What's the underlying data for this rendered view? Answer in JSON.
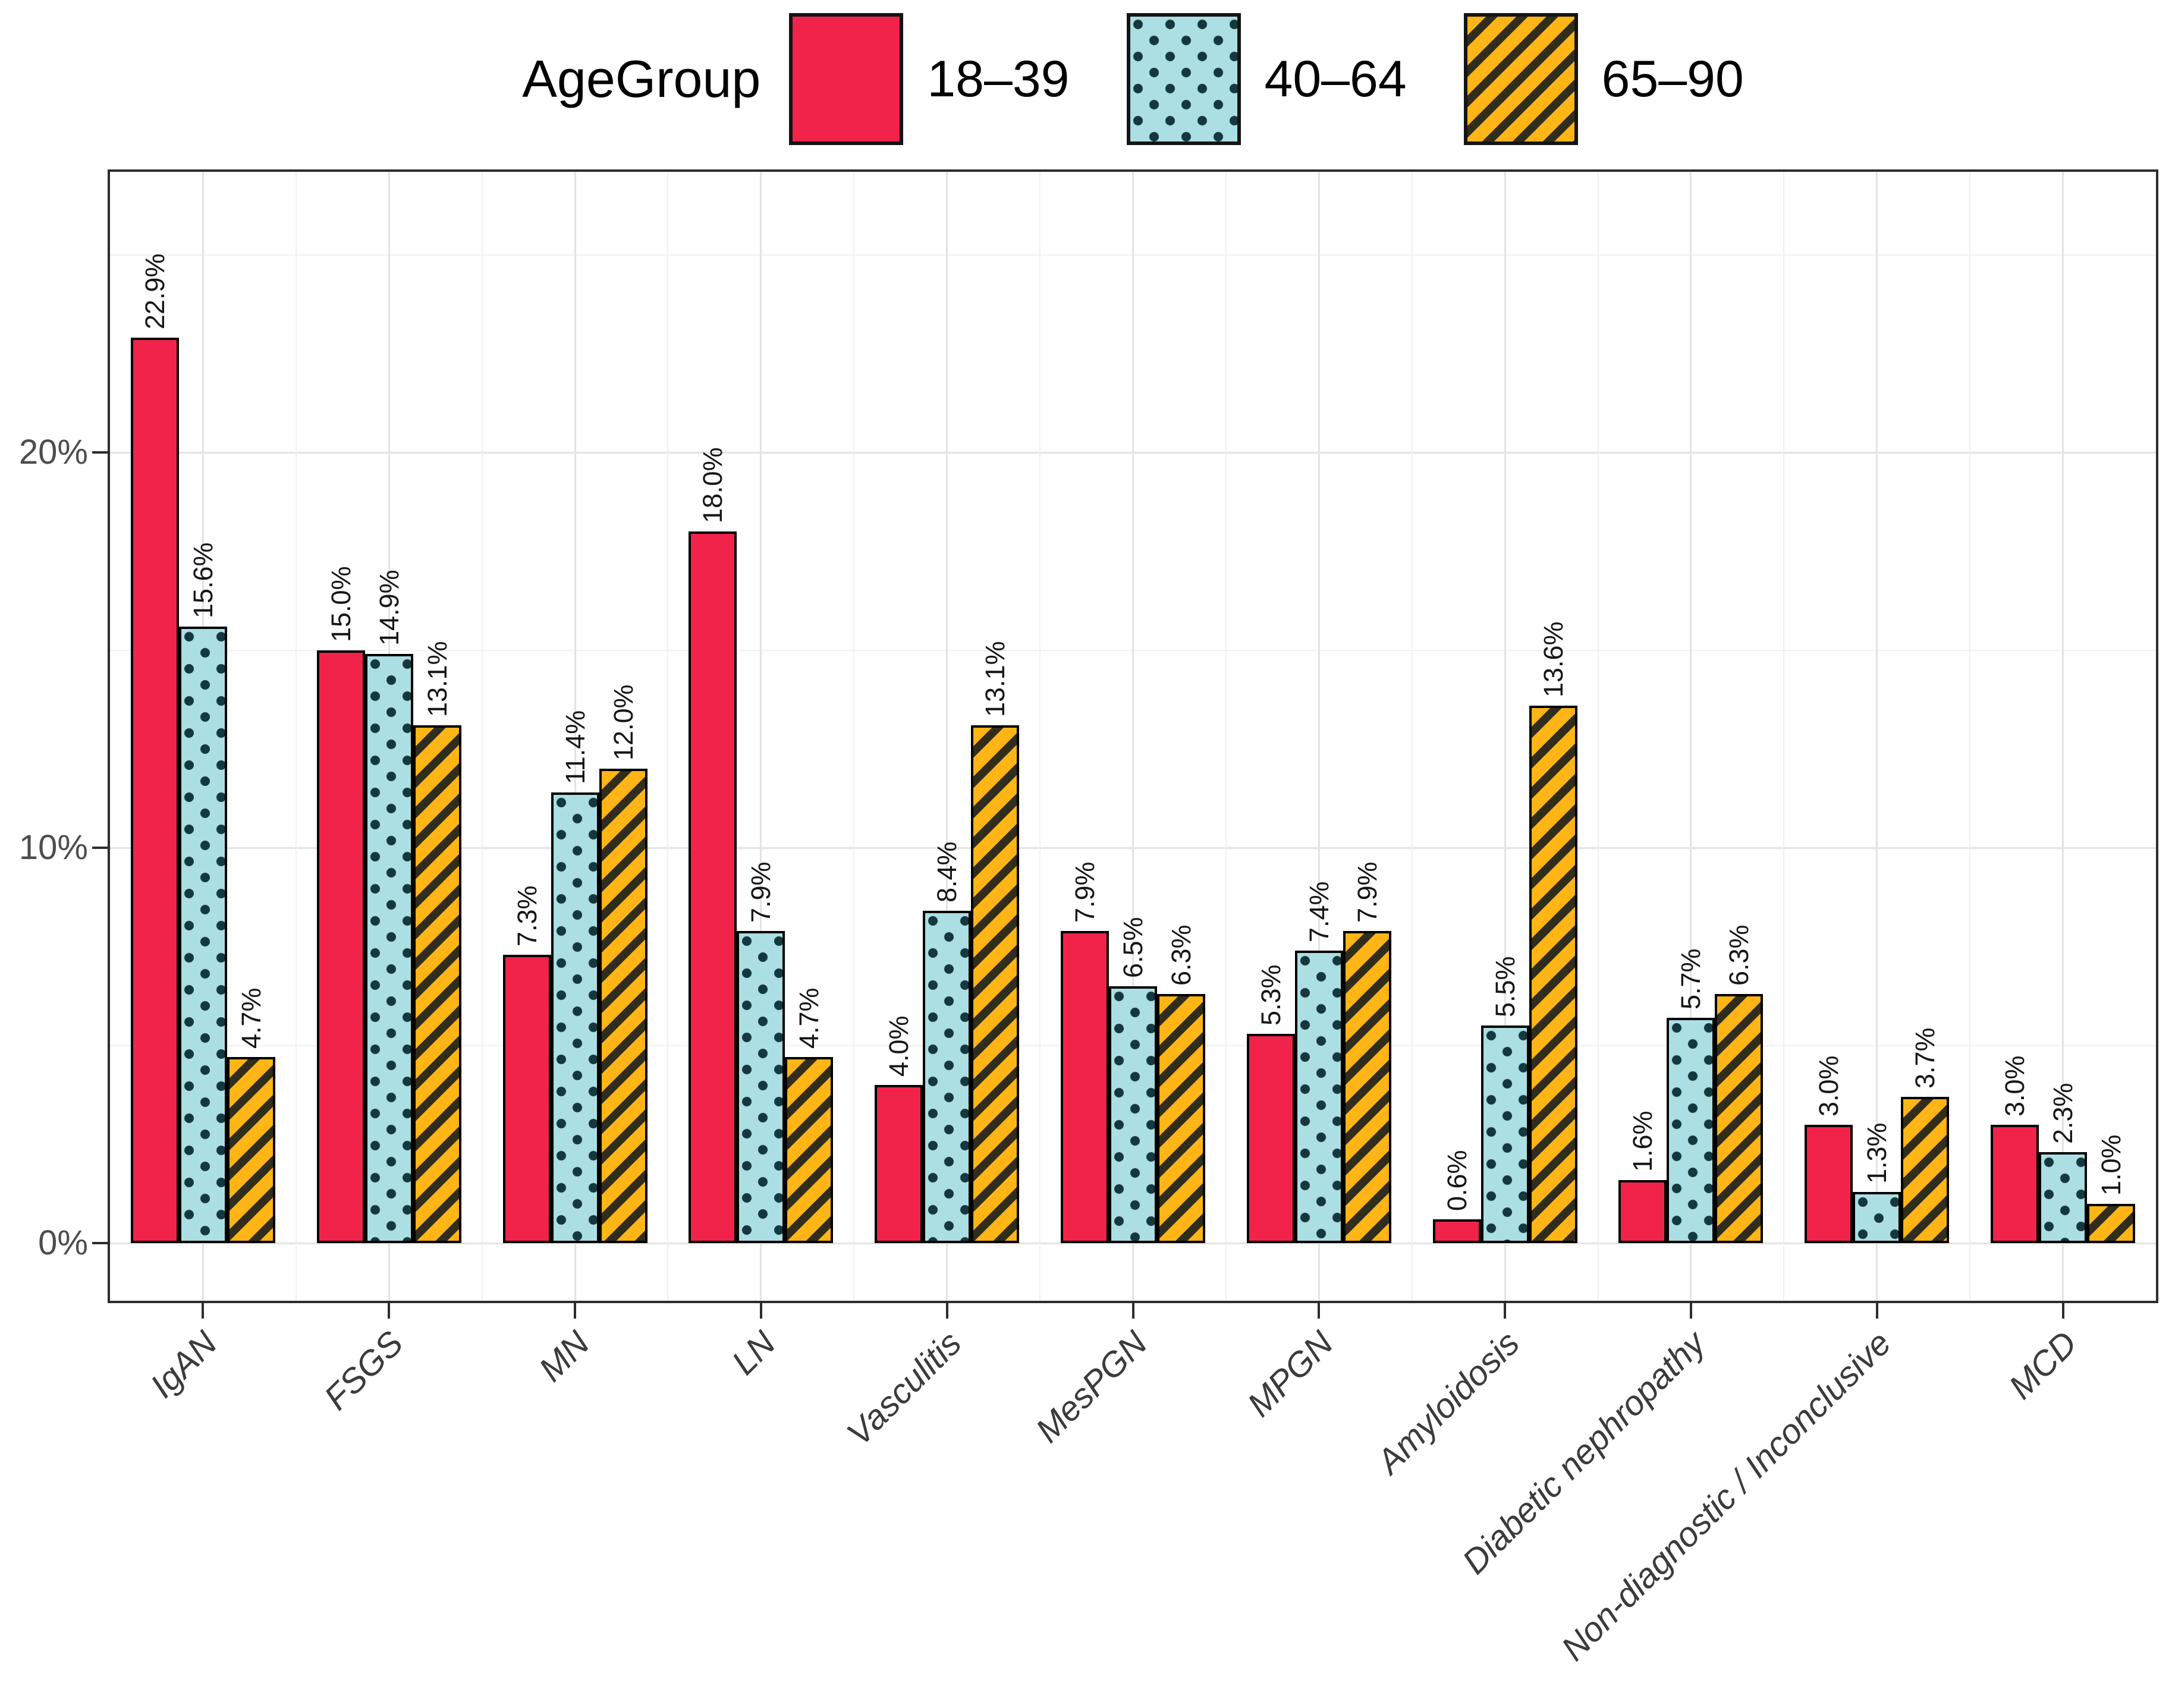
{
  "chart_data": {
    "type": "bar",
    "title": "",
    "legend_title": "AgeGroup",
    "legend_position": "top",
    "grid": true,
    "categories": [
      "IgAN",
      "FSGS",
      "MN",
      "LN",
      "Vasculitis",
      "MesPGN",
      "MPGN",
      "Amyloidosis",
      "Diabetic nephropathy",
      "Non-diagnostic / Inconclusive",
      "MCD"
    ],
    "series": [
      {
        "name": "18–39",
        "pattern": "solid",
        "fill": "#F2234B",
        "values": [
          22.9,
          15.0,
          7.3,
          18.0,
          4.0,
          7.9,
          5.3,
          0.6,
          1.6,
          3.0,
          3.0
        ]
      },
      {
        "name": "40–64",
        "pattern": "dots",
        "fill": "#ABDFE3",
        "dot_color": "#14383D",
        "values": [
          15.6,
          14.9,
          11.4,
          7.9,
          8.4,
          6.5,
          7.4,
          5.5,
          5.7,
          1.3,
          2.3
        ]
      },
      {
        "name": "65–90",
        "pattern": "stripes",
        "fill": "#FFB515",
        "stripe_color": "#312D1C",
        "values": [
          4.7,
          13.1,
          12.0,
          4.7,
          13.1,
          6.3,
          7.9,
          13.6,
          6.3,
          3.7,
          1.0
        ]
      }
    ],
    "value_label_suffix": "%",
    "value_label_decimals": 1,
    "xlabel": "",
    "ylabel": "",
    "y_axis": {
      "major_ticks": [
        0,
        10,
        20
      ],
      "major_tick_labels": [
        "0%",
        "10%",
        "20%"
      ],
      "minor_ticks": [
        5,
        15,
        25
      ],
      "ylim": [
        0,
        27.1
      ]
    },
    "colors": {
      "bar_outline": "#000000",
      "panel_border": "#2d2d2d",
      "grid_major": "#e3e3e3",
      "grid_minor": "#f0f0f0",
      "axis_text": "#4d4d4d",
      "value_text": "#161616"
    }
  }
}
